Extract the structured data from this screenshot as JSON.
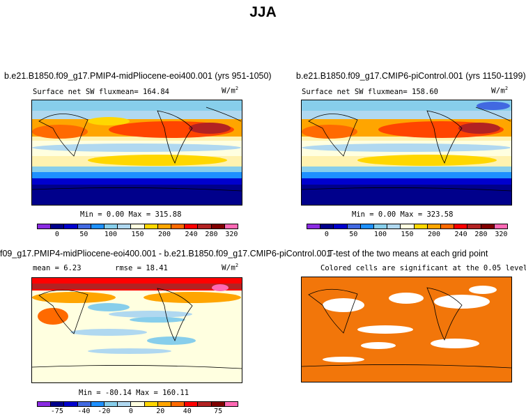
{
  "figure": {
    "title": "JJA"
  },
  "colors": {
    "abs_scale": [
      "#8a2be2",
      "#00008b",
      "#0000cd",
      "#4169e1",
      "#1e90ff",
      "#87ceeb",
      "#b0d8f0",
      "#ffffe0",
      "#ffd700",
      "#ffa500",
      "#ff6a00",
      "#ff0000",
      "#b22222",
      "#800000",
      "#ff69b4"
    ],
    "diff_scale": [
      "#8a2be2",
      "#00008b",
      "#0000cd",
      "#4169e1",
      "#1e90ff",
      "#87ceeb",
      "#b0d8f0",
      "#ffffe0",
      "#ffd700",
      "#ffa500",
      "#ff6a00",
      "#ff0000",
      "#b22222",
      "#800000",
      "#ff69b4"
    ],
    "significant": "#f2760a"
  },
  "panels": {
    "p1": {
      "title": "b.e21.B1850.f09_g17.PMIP4-midPliocene-eoi400.001 (yrs 951-1050)",
      "label": "Surface net SW flux",
      "mean": "mean= 164.84",
      "units": "W/m",
      "units_exp": "2",
      "minmax": "Min =   0.00 Max = 315.88"
    },
    "p2": {
      "title": "b.e21.B1850.f09_g17.CMIP6-piControl.001 (yrs 1150-1199)",
      "label": "Surface net SW flux",
      "mean": "mean= 158.60",
      "units": "W/m",
      "units_exp": "2",
      "minmax": "Min =   0.00 Max = 323.58"
    },
    "p3": {
      "title": "f09_g17.PMIP4-midPliocene-eoi400.001 - b.e21.B1850.f09_g17.CMIP6-piControl.001",
      "mean": "mean =   6.23",
      "rmse": "rmse =  18.41",
      "units": "W/m",
      "units_exp": "2",
      "minmax": "Min = -80.14 Max = 160.11"
    },
    "p4": {
      "title": "T-test of the two means at each grid point",
      "subtitle": "Colored cells are significant at the 0.05 level"
    }
  },
  "chart_data": [
    {
      "type": "heatmap",
      "title": "b.e21.B1850.f09_g17.PMIP4-midPliocene-eoi400.001 (yrs 951-1050)",
      "variable": "Surface net SW flux",
      "units": "W/m2",
      "mean": 164.84,
      "min": 0.0,
      "max": 315.88,
      "colorbar_ticks": [
        "0",
        "50",
        "100",
        "150",
        "200",
        "240",
        "280",
        "320"
      ]
    },
    {
      "type": "heatmap",
      "title": "b.e21.B1850.f09_g17.CMIP6-piControl.001 (yrs 1150-1199)",
      "variable": "Surface net SW flux",
      "units": "W/m2",
      "mean": 158.6,
      "min": 0.0,
      "max": 323.58,
      "colorbar_ticks": [
        "0",
        "50",
        "100",
        "150",
        "200",
        "240",
        "280",
        "320"
      ]
    },
    {
      "type": "heatmap",
      "title": "f09_g17.PMIP4-midPliocene-eoi400.001 - b.e21.B1850.f09_g17.CMIP6-piControl.001",
      "units": "W/m2",
      "mean": 6.23,
      "rmse": 18.41,
      "min": -80.14,
      "max": 160.11,
      "colorbar_ticks": [
        "-75",
        "-40",
        "-20",
        "0",
        "20",
        "40",
        "75"
      ]
    },
    {
      "type": "heatmap",
      "title": "T-test of the two means at each grid point",
      "subtitle": "Colored cells are significant at the 0.05 level"
    }
  ]
}
